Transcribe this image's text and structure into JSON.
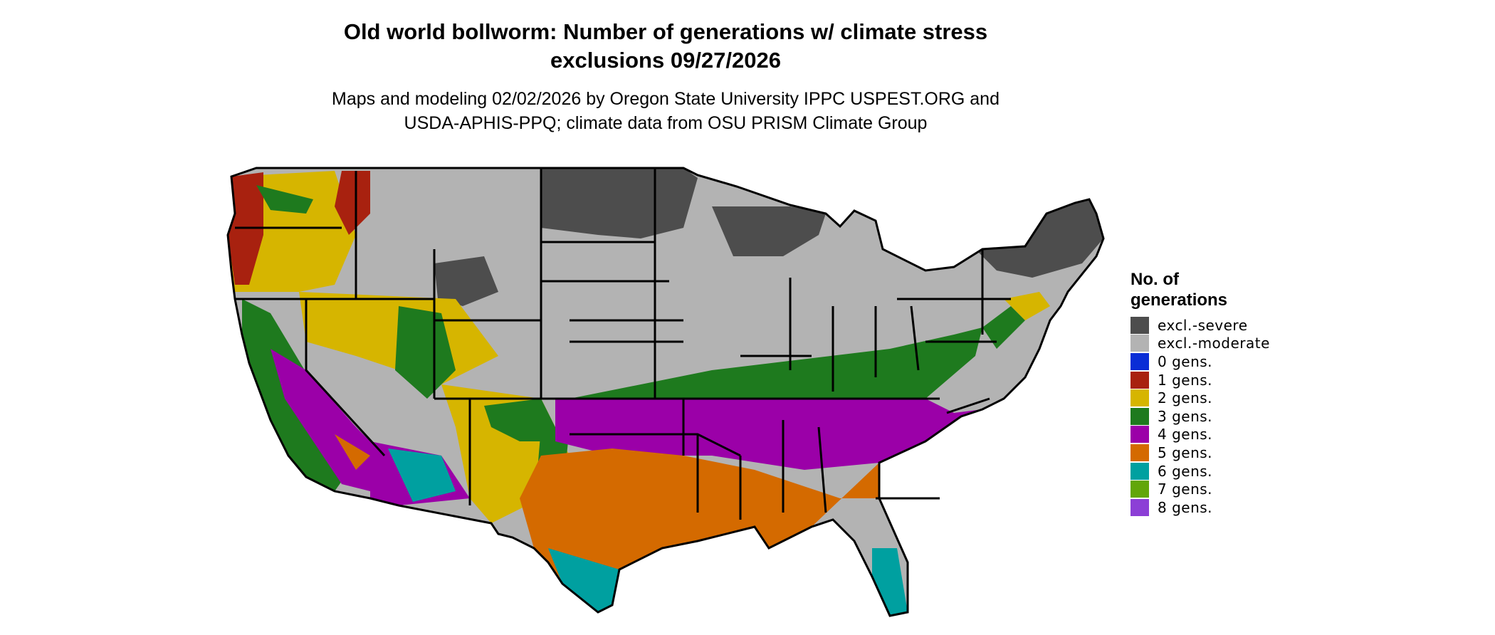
{
  "title": {
    "line1": "Old world bollworm: Number of generations w/ climate stress",
    "line2": "exclusions 09/27/2026"
  },
  "subtitle": {
    "line1": "Maps and modeling 02/02/2026 by Oregon State University IPPC USPEST.ORG and",
    "line2": "USDA-APHIS-PPQ; climate data from OSU PRISM Climate Group"
  },
  "legend": {
    "title_line1": "No. of",
    "title_line2": "generations",
    "items": [
      {
        "label": "excl.-severe",
        "color": "#4d4d4d"
      },
      {
        "label": "excl.-moderate",
        "color": "#b3b3b3"
      },
      {
        "label": "0 gens.",
        "color": "#0a2dd6"
      },
      {
        "label": "1 gens.",
        "color": "#a8210f"
      },
      {
        "label": "2 gens.",
        "color": "#d6b500"
      },
      {
        "label": "3 gens.",
        "color": "#1e7a1e"
      },
      {
        "label": "4 gens.",
        "color": "#9b00a8"
      },
      {
        "label": "5 gens.",
        "color": "#d46a00"
      },
      {
        "label": "6 gens.",
        "color": "#00a0a0"
      },
      {
        "label": "7 gens.",
        "color": "#62a60a"
      },
      {
        "label": "8 gens.",
        "color": "#8c3fd6"
      }
    ]
  }
}
